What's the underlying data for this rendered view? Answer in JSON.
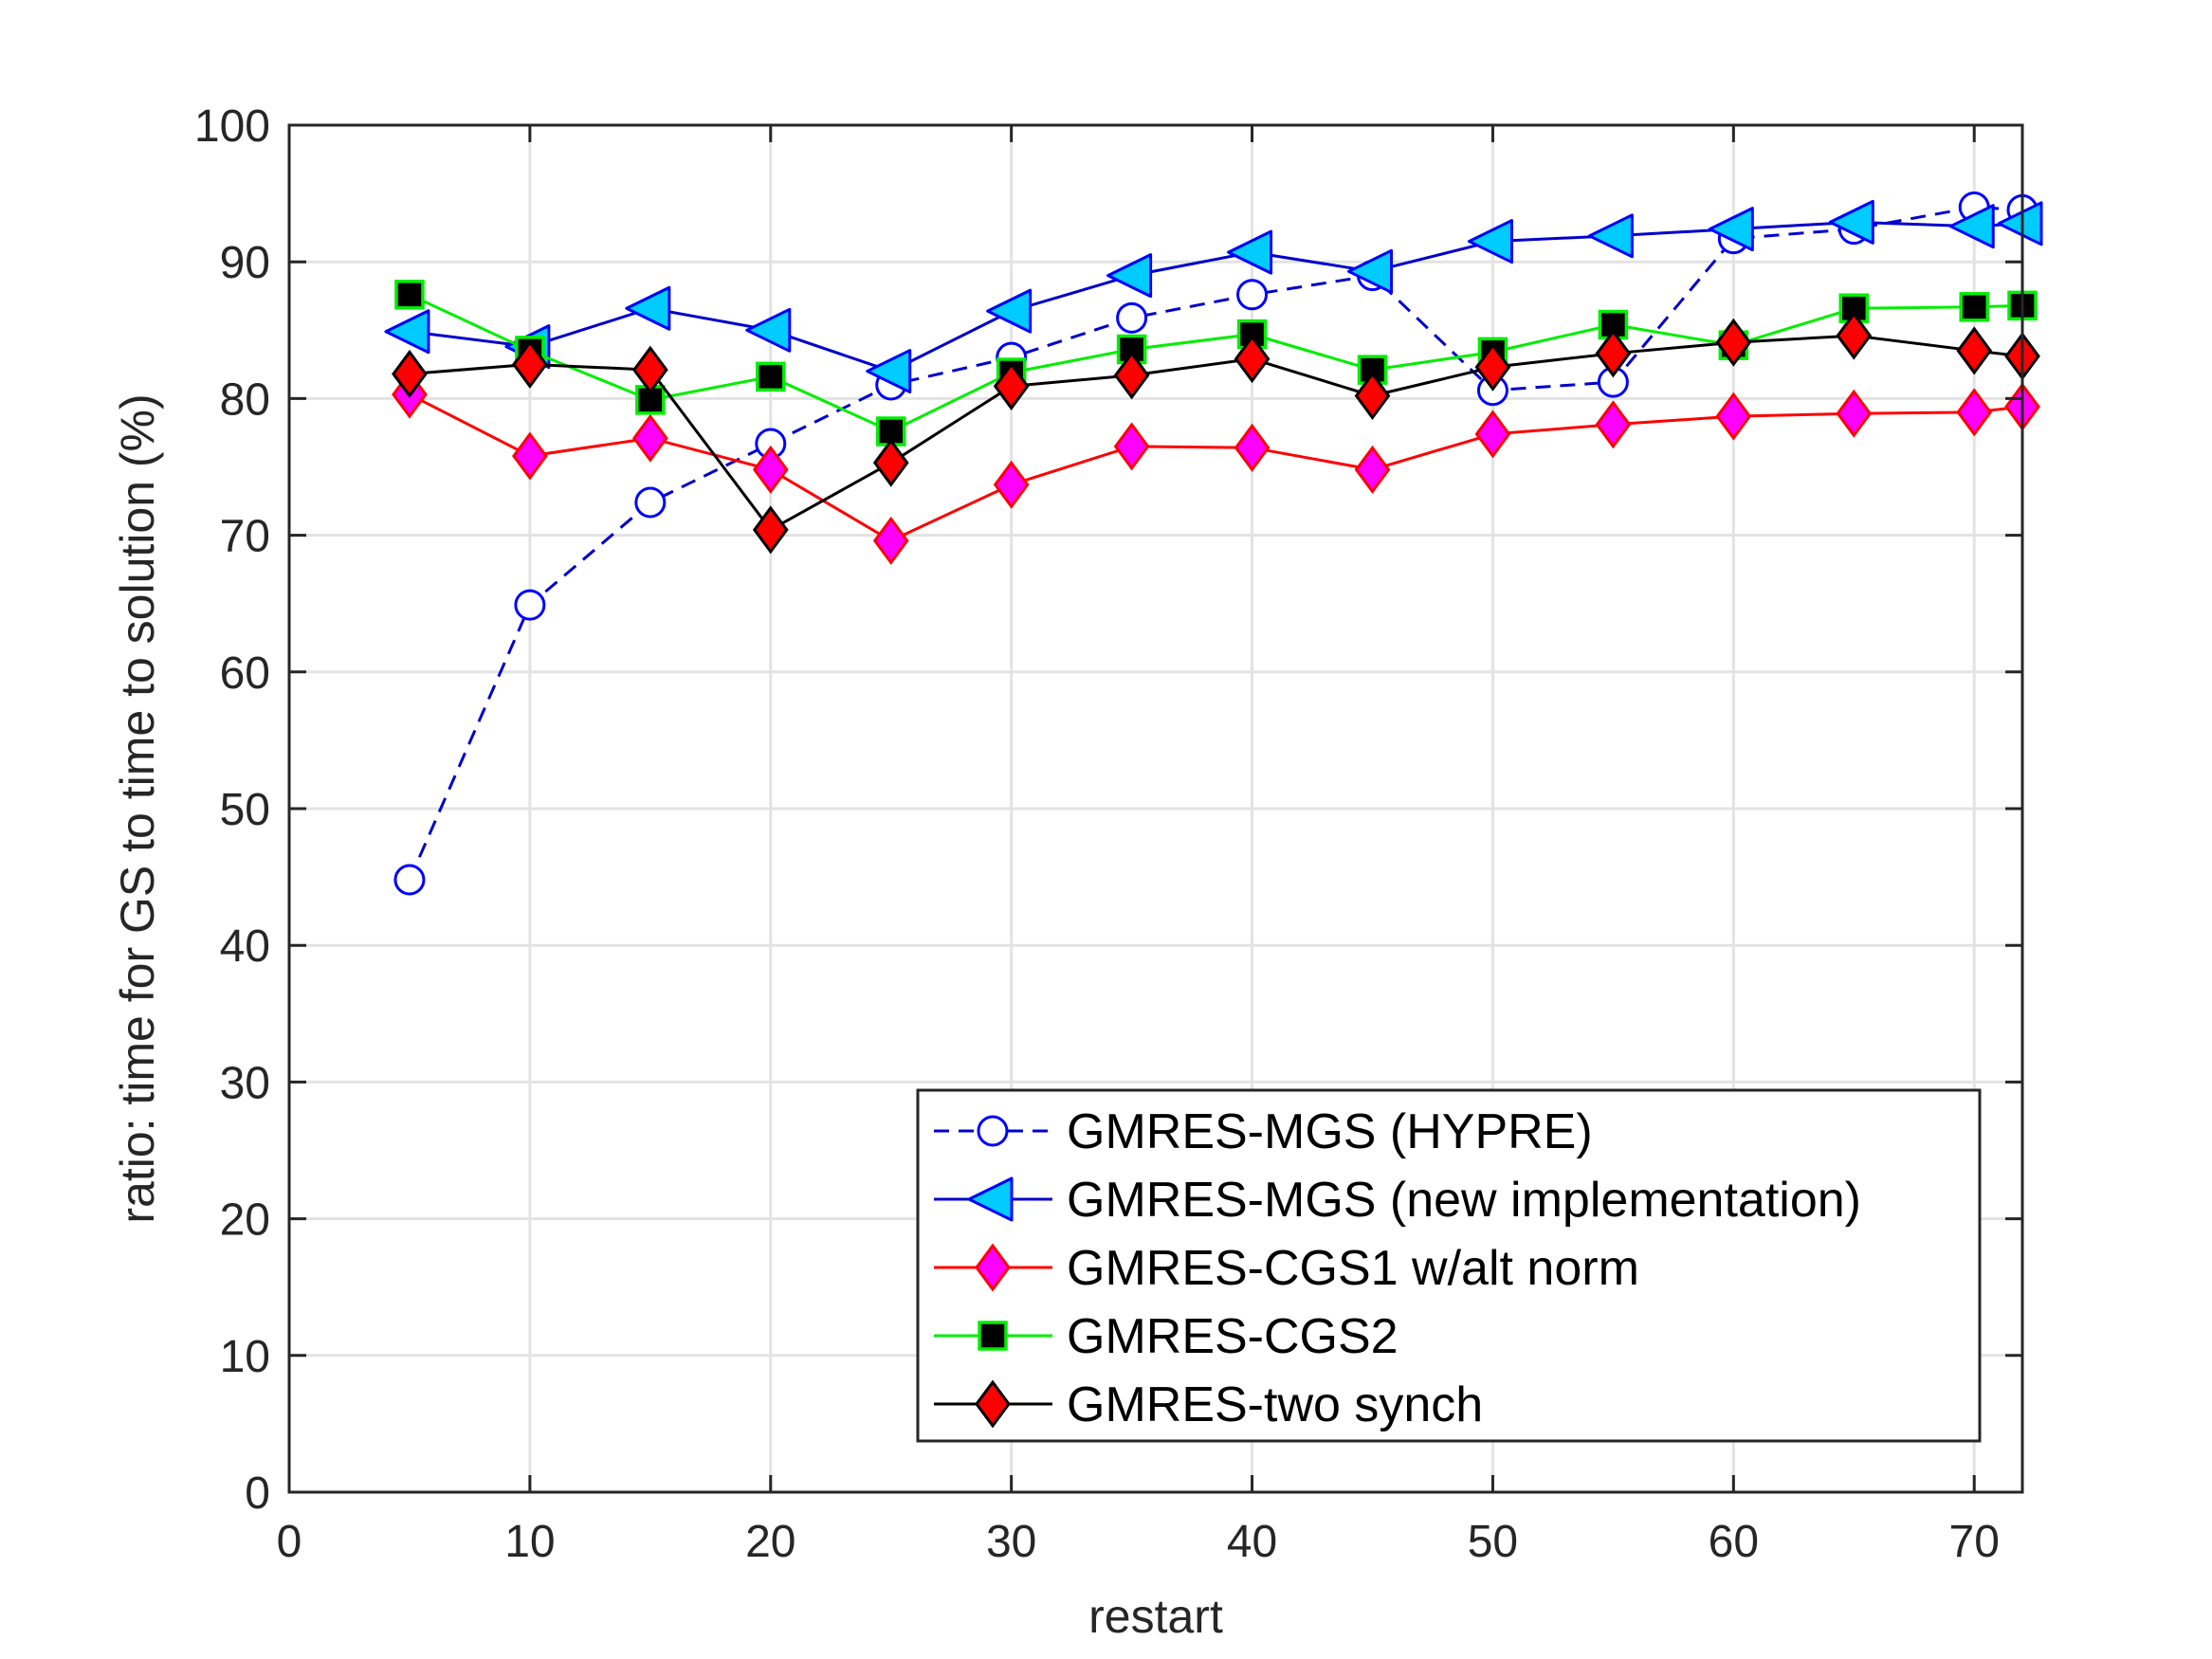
{
  "chart_data": {
    "type": "line",
    "title": "",
    "xlabel": "restart",
    "ylabel": "ratio: time for GS to time to solution (%)",
    "xlim": [
      0,
      72
    ],
    "ylim": [
      0,
      100
    ],
    "xticks": [
      0,
      10,
      20,
      30,
      40,
      50,
      60,
      70
    ],
    "yticks": [
      0,
      10,
      20,
      30,
      40,
      50,
      60,
      70,
      80,
      90,
      100
    ],
    "grid": true,
    "legend_position": "bottom-right",
    "x": [
      5,
      10,
      15,
      20,
      25,
      30,
      35,
      40,
      45,
      50,
      55,
      60,
      65,
      70,
      72
    ],
    "series": [
      {
        "name": "GMRES-MGS (HYPRE)",
        "values": [
          44.8,
          64.9,
          72.4,
          76.7,
          81.0,
          83.0,
          85.9,
          87.6,
          89.0,
          80.6,
          81.2,
          91.7,
          92.4,
          94.0,
          93.8
        ],
        "line_color": "#0000cc",
        "line_style": "dashed",
        "marker": "circle",
        "marker_fill": "#ffffff",
        "marker_edge": "#0000ff"
      },
      {
        "name": "GMRES-MGS (new implementation)",
        "values": [
          84.9,
          83.8,
          86.6,
          85.0,
          82.0,
          86.4,
          89.0,
          90.7,
          89.3,
          91.5,
          91.9,
          92.4,
          92.9,
          92.6,
          92.8
        ],
        "line_color": "#0000cc",
        "line_style": "solid",
        "marker": "triangle-left",
        "marker_fill": "#00ccff",
        "marker_edge": "#0000ff"
      },
      {
        "name": "GMRES-CGS1 w/alt norm",
        "values": [
          80.3,
          75.8,
          77.1,
          74.8,
          69.6,
          73.7,
          76.5,
          76.4,
          74.8,
          77.4,
          78.1,
          78.7,
          78.9,
          79.0,
          79.4
        ],
        "line_color": "#ff0000",
        "line_style": "solid",
        "marker": "diamond",
        "marker_fill": "#ff00ff",
        "marker_edge": "#ff0000"
      },
      {
        "name": "GMRES-CGS2",
        "values": [
          87.6,
          83.5,
          79.9,
          81.6,
          77.6,
          81.9,
          83.6,
          84.7,
          82.1,
          83.4,
          85.4,
          83.9,
          86.6,
          86.7,
          86.8
        ],
        "line_color": "#00ee00",
        "line_style": "solid",
        "marker": "square",
        "marker_fill": "#000000",
        "marker_edge": "#00ee00"
      },
      {
        "name": "GMRES-two synch",
        "values": [
          81.8,
          82.5,
          82.1,
          70.4,
          75.3,
          80.9,
          81.7,
          82.9,
          80.2,
          82.3,
          83.3,
          84.1,
          84.6,
          83.5,
          83.1
        ],
        "line_color": "#000000",
        "line_style": "solid",
        "marker": "diamond",
        "marker_fill": "#ff0000",
        "marker_edge": "#000000"
      }
    ]
  }
}
